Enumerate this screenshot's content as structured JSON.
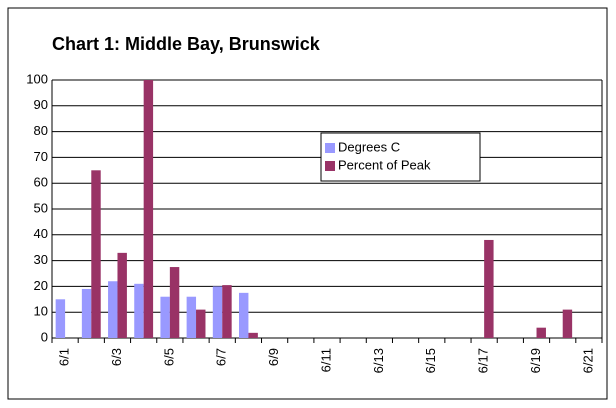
{
  "chart_data": {
    "type": "bar",
    "title": "Chart 1:  Middle Bay, Brunswick",
    "categories": [
      "6/1",
      null,
      "6/3",
      null,
      "6/5",
      null,
      "6/7",
      null,
      "6/9",
      null,
      "6/11",
      null,
      "6/13",
      null,
      "6/15",
      null,
      "6/17",
      null,
      "6/19",
      null,
      "6/21"
    ],
    "series": [
      {
        "name": "Degrees C",
        "color": "#9999ff",
        "values": [
          15,
          19,
          22,
          21,
          16,
          16,
          20,
          17.5,
          null,
          null,
          null,
          null,
          null,
          null,
          null,
          null,
          null,
          null,
          null,
          null,
          null
        ]
      },
      {
        "name": "Percent of Peak",
        "color": "#993366",
        "values": [
          null,
          65,
          33,
          100,
          27.5,
          11,
          20.5,
          2,
          null,
          null,
          null,
          null,
          null,
          null,
          null,
          null,
          38,
          null,
          4,
          11,
          null
        ]
      }
    ],
    "ylim": [
      0,
      100
    ],
    "yticks": [
      0,
      10,
      20,
      30,
      40,
      50,
      60,
      70,
      80,
      90,
      100
    ],
    "grid": true,
    "legend": "upper center"
  }
}
